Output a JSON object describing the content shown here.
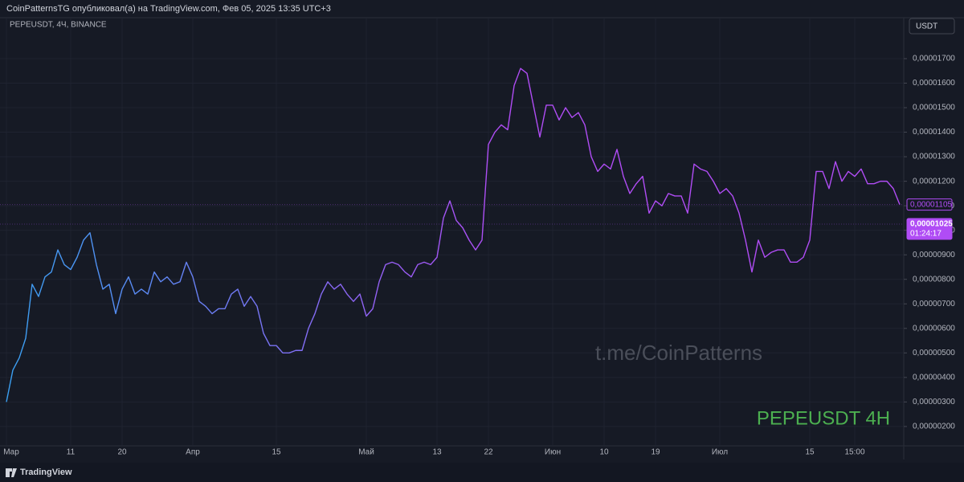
{
  "header": {
    "text": "CoinPatternsTG опубликовал(а) на TradingView.com, Фев 05, 2025 13:35 UTC+3"
  },
  "footer": {
    "brand": "TradingView"
  },
  "chart_data": {
    "type": "line",
    "symbol": "PEPEUSDT, 4Ч, BINANCE",
    "currency": "USDT",
    "watermarks": [
      "t.me/CoinPatterns",
      "PEPEUSDT 4H"
    ],
    "gradient": [
      "#3aa0f2",
      "#b04cf5"
    ],
    "grid": true,
    "ylim": [
      1.21e-06,
      1.867e-05
    ],
    "yticks": [
      {
        "value": 2e-06,
        "label": "0,00000200"
      },
      {
        "value": 3e-06,
        "label": "0,00000300"
      },
      {
        "value": 4e-06,
        "label": "0,00000400"
      },
      {
        "value": 5e-06,
        "label": "0,00000500"
      },
      {
        "value": 6e-06,
        "label": "0,00000600"
      },
      {
        "value": 7e-06,
        "label": "0,00000700"
      },
      {
        "value": 8e-06,
        "label": "0,00000800"
      },
      {
        "value": 9e-06,
        "label": "0,00000900"
      },
      {
        "value": 1e-05,
        "label": "0,00001000"
      },
      {
        "value": 1.1e-05,
        "label": "0,00001100"
      },
      {
        "value": 1.2e-05,
        "label": "0,00001200"
      },
      {
        "value": 1.3e-05,
        "label": "0,00001300"
      },
      {
        "value": 1.4e-05,
        "label": "0,00001400"
      },
      {
        "value": 1.5e-05,
        "label": "0,00001500"
      },
      {
        "value": 1.6e-05,
        "label": "0,00001600"
      },
      {
        "value": 1.7e-05,
        "label": "0,00001700"
      }
    ],
    "price_labels": [
      {
        "value": 1.105e-05,
        "label": "0,00001105"
      },
      {
        "value": 1.025e-05,
        "label": "0,00001025",
        "countdown": "01:24:17"
      }
    ],
    "categories": [
      "Мар",
      null,
      null,
      null,
      null,
      null,
      null,
      null,
      null,
      null,
      "11",
      null,
      null,
      null,
      null,
      null,
      null,
      null,
      "20",
      null,
      null,
      null,
      null,
      null,
      null,
      null,
      null,
      null,
      null,
      "Апр",
      null,
      null,
      null,
      null,
      null,
      null,
      null,
      null,
      null,
      null,
      null,
      null,
      "15",
      null,
      null,
      null,
      null,
      null,
      null,
      null,
      null,
      null,
      null,
      null,
      null,
      null,
      "Май",
      null,
      null,
      null,
      null,
      null,
      null,
      null,
      null,
      null,
      null,
      "13",
      null,
      null,
      null,
      null,
      null,
      null,
      null,
      "22",
      null,
      null,
      null,
      null,
      null,
      null,
      null,
      null,
      null,
      "Июн",
      null,
      null,
      null,
      null,
      null,
      null,
      null,
      "10",
      null,
      null,
      null,
      null,
      null,
      null,
      null,
      "19",
      null,
      null,
      null,
      null,
      null,
      null,
      null,
      null,
      null,
      "Июл",
      null,
      null,
      null,
      null,
      null,
      null,
      null,
      null,
      null,
      null,
      null,
      null,
      null,
      "15",
      null,
      null,
      null,
      null,
      null,
      null,
      "15:00",
      null,
      null,
      null,
      null,
      null,
      null,
      null
    ],
    "values": [
      3e-06,
      4.3e-06,
      4.8e-06,
      5.6e-06,
      7.8e-06,
      7.3e-06,
      8.1e-06,
      8.3e-06,
      9.2e-06,
      8.6e-06,
      8.4e-06,
      8.9e-06,
      9.6e-06,
      9.9e-06,
      8.6e-06,
      7.6e-06,
      7.8e-06,
      6.6e-06,
      7.6e-06,
      8.1e-06,
      7.4e-06,
      7.6e-06,
      7.4e-06,
      8.3e-06,
      7.9e-06,
      8.1e-06,
      7.8e-06,
      7.9e-06,
      8.7e-06,
      8.1e-06,
      7.1e-06,
      6.9e-06,
      6.6e-06,
      6.8e-06,
      6.8e-06,
      7.4e-06,
      7.6e-06,
      6.9e-06,
      7.3e-06,
      6.9e-06,
      5.8e-06,
      5.3e-06,
      5.3e-06,
      5e-06,
      5e-06,
      5.1e-06,
      5.1e-06,
      6e-06,
      6.6e-06,
      7.4e-06,
      7.9e-06,
      7.6e-06,
      7.8e-06,
      7.4e-06,
      7.1e-06,
      7.4e-06,
      6.5e-06,
      6.8e-06,
      7.9e-06,
      8.6e-06,
      8.7e-06,
      8.6e-06,
      8.3e-06,
      8.1e-06,
      8.6e-06,
      8.7e-06,
      8.6e-06,
      8.9e-06,
      1.05e-05,
      1.12e-05,
      1.04e-05,
      1.01e-05,
      9.6e-06,
      9.2e-06,
      9.6e-06,
      1.35e-05,
      1.4e-05,
      1.43e-05,
      1.41e-05,
      1.59e-05,
      1.66e-05,
      1.64e-05,
      1.51e-05,
      1.38e-05,
      1.51e-05,
      1.51e-05,
      1.45e-05,
      1.5e-05,
      1.46e-05,
      1.48e-05,
      1.43e-05,
      1.3e-05,
      1.24e-05,
      1.27e-05,
      1.25e-05,
      1.33e-05,
      1.22e-05,
      1.15e-05,
      1.19e-05,
      1.22e-05,
      1.07e-05,
      1.12e-05,
      1.1e-05,
      1.15e-05,
      1.14e-05,
      1.14e-05,
      1.07e-05,
      1.27e-05,
      1.25e-05,
      1.24e-05,
      1.2e-05,
      1.15e-05,
      1.17e-05,
      1.14e-05,
      1.07e-05,
      9.6e-06,
      8.3e-06,
      9.6e-06,
      8.9e-06,
      9.1e-06,
      9.2e-06,
      9.2e-06,
      8.7e-06,
      8.7e-06,
      8.9e-06,
      9.6e-06,
      1.24e-05,
      1.24e-05,
      1.17e-05,
      1.28e-05,
      1.2e-05,
      1.24e-05,
      1.22e-05,
      1.25e-05,
      1.19e-05,
      1.19e-05,
      1.2e-05,
      1.2e-05,
      1.17e-05,
      1.105e-05
    ]
  }
}
